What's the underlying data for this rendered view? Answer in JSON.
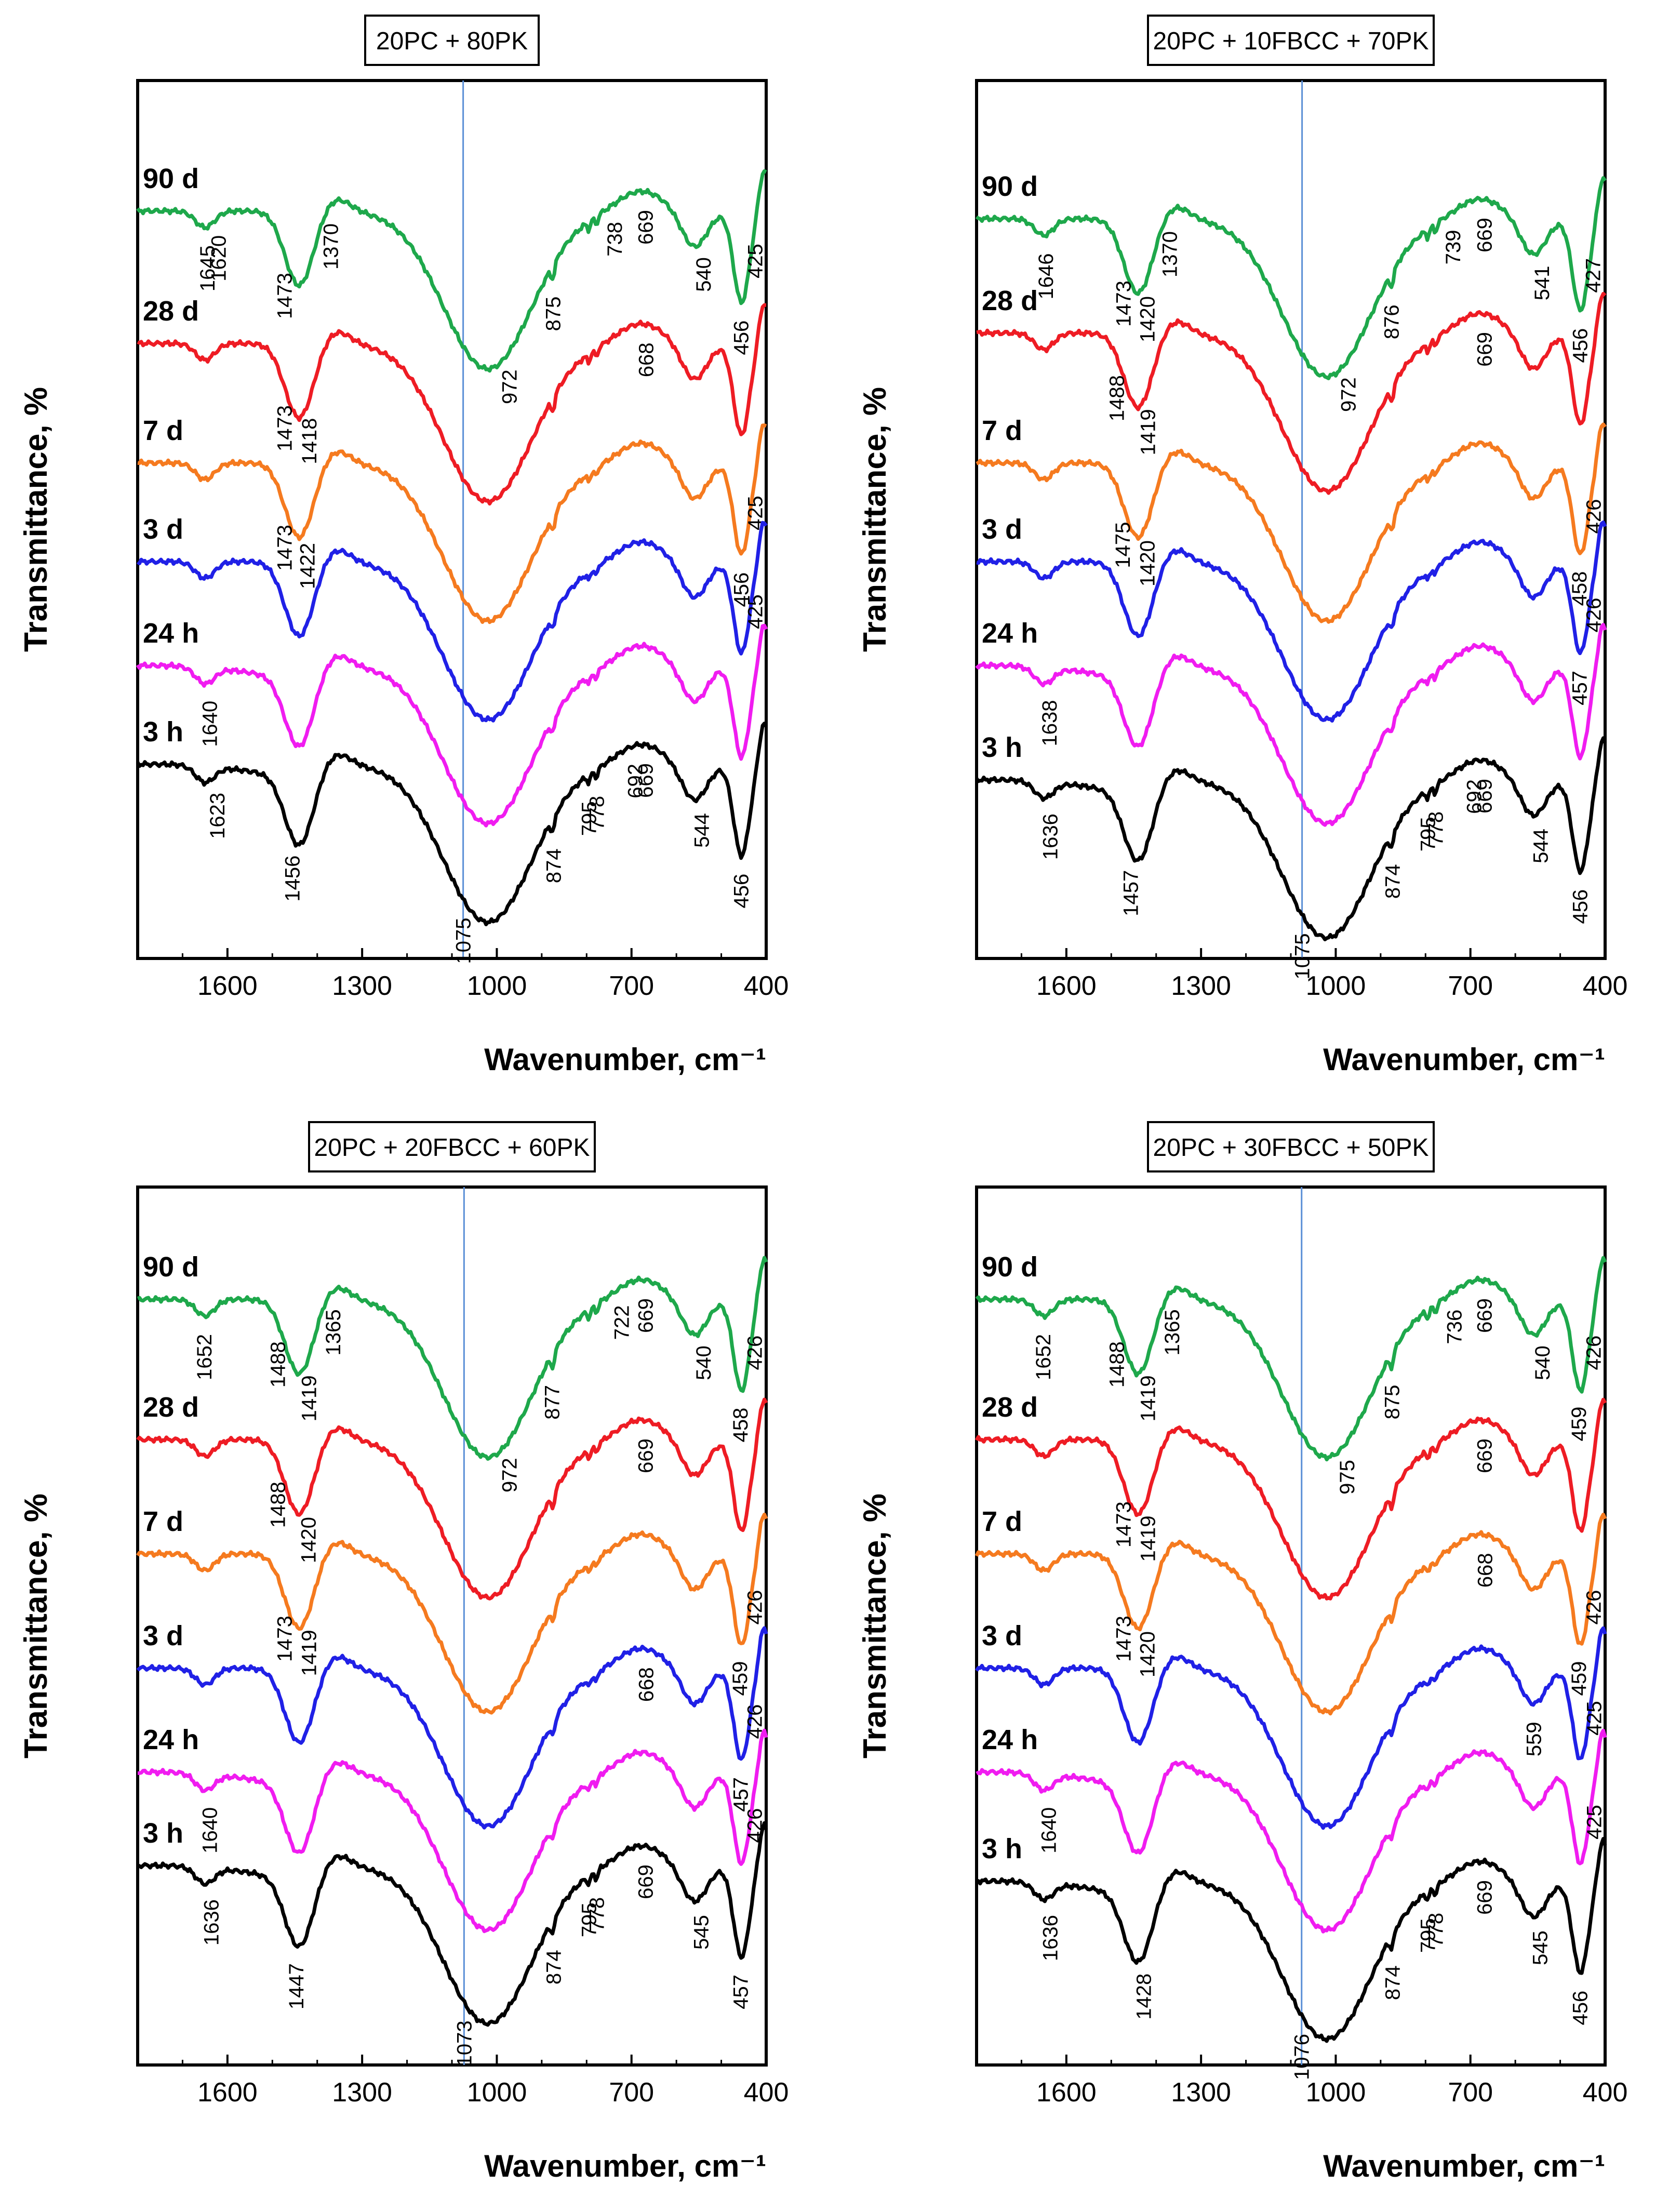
{
  "colors": {
    "90 d": "#1ea84b",
    "28 d": "#ee1c24",
    "7 d": "#f57a1f",
    "3 d": "#2020e6",
    "24 h": "#f01cf0",
    "3 h": "#000000",
    "axis": "#000000",
    "guide_line": "#5b8fd6"
  },
  "chart_data": [
    {
      "type": "line",
      "title": "20PC + 80PK",
      "xlabel": "Wavenumber, cm⁻¹",
      "ylabel": "Transmittance, %",
      "xlim": [
        1800,
        400
      ],
      "x_reversed": true,
      "xticks": [
        "1600",
        "1300",
        "1000",
        "700",
        "400"
      ],
      "y_ticks_shown": false,
      "guide_line_x": 1075,
      "series_order_top_to_bottom": [
        "90 d",
        "28 d",
        "7 d",
        "3 d",
        "24 h",
        "3 h"
      ],
      "series": [
        {
          "name": "90 d",
          "band_labels": [
            "1645",
            "1473",
            "1620",
            "1370",
            "972",
            "875",
            "738",
            "669",
            "540",
            "456",
            "425"
          ]
        },
        {
          "name": "28 d",
          "band_labels": [
            "1473",
            "1418",
            "668"
          ]
        },
        {
          "name": "7 d",
          "band_labels": [
            "1473",
            "1422",
            "456",
            "425"
          ]
        },
        {
          "name": "3 d",
          "band_labels": [
            "425"
          ]
        },
        {
          "name": "24 h",
          "band_labels": [
            "1640"
          ]
        },
        {
          "name": "3 h",
          "band_labels": [
            "1623",
            "1456",
            "1075",
            "874",
            "795",
            "778",
            "692",
            "669",
            "544",
            "456"
          ]
        }
      ]
    },
    {
      "type": "line",
      "title": "20PC + 10FBCC + 70PK",
      "xlabel": "Wavenumber, cm⁻¹",
      "ylabel": "Transmittance, %",
      "xlim": [
        1800,
        400
      ],
      "x_reversed": true,
      "xticks": [
        "1600",
        "1300",
        "1000",
        "700",
        "400"
      ],
      "y_ticks_shown": false,
      "guide_line_x": 1075,
      "series_order_top_to_bottom": [
        "90 d",
        "28 d",
        "7 d",
        "3 d",
        "24 h",
        "3 h"
      ],
      "series": [
        {
          "name": "90 d",
          "band_labels": [
            "1646",
            "1473",
            "1420",
            "1370",
            "972",
            "876",
            "739",
            "669",
            "541",
            "456",
            "427"
          ]
        },
        {
          "name": "28 d",
          "band_labels": [
            "1488",
            "1419",
            "669"
          ]
        },
        {
          "name": "7 d",
          "band_labels": [
            "1475",
            "1420",
            "458",
            "426"
          ]
        },
        {
          "name": "3 d",
          "band_labels": [
            "457",
            "426"
          ]
        },
        {
          "name": "24 h",
          "band_labels": [
            "1638"
          ]
        },
        {
          "name": "3 h",
          "band_labels": [
            "1636",
            "1457",
            "1075",
            "874",
            "795",
            "778",
            "692",
            "669",
            "544",
            "456"
          ]
        }
      ]
    },
    {
      "type": "line",
      "title": "20PC + 20FBCC + 60PK",
      "xlabel": "Wavenumber, cm⁻¹",
      "ylabel": "Transmittance, %",
      "xlim": [
        1800,
        400
      ],
      "x_reversed": true,
      "xticks": [
        "1600",
        "1300",
        "1000",
        "700",
        "400"
      ],
      "y_ticks_shown": false,
      "guide_line_x": 1073,
      "series_order_top_to_bottom": [
        "90 d",
        "28 d",
        "7 d",
        "3 d",
        "24 h",
        "3 h"
      ],
      "series": [
        {
          "name": "90 d",
          "band_labels": [
            "1652",
            "1488",
            "1419",
            "1365",
            "972",
            "877",
            "722",
            "669",
            "540",
            "458",
            "426"
          ]
        },
        {
          "name": "28 d",
          "band_labels": [
            "1488",
            "1420",
            "669"
          ]
        },
        {
          "name": "7 d",
          "band_labels": [
            "1473",
            "1419",
            "459",
            "426"
          ]
        },
        {
          "name": "3 d",
          "band_labels": [
            "668",
            "457",
            "426"
          ]
        },
        {
          "name": "24 h",
          "band_labels": [
            "1640",
            "426"
          ]
        },
        {
          "name": "3 h",
          "band_labels": [
            "1636",
            "1447",
            "1073",
            "874",
            "795",
            "778",
            "669",
            "545",
            "457"
          ]
        }
      ]
    },
    {
      "type": "line",
      "title": "20PC + 30FBCC + 50PK",
      "xlabel": "Wavenumber, cm⁻¹",
      "ylabel": "Transmittance, %",
      "xlim": [
        1800,
        400
      ],
      "x_reversed": true,
      "xticks": [
        "1600",
        "1300",
        "1000",
        "700",
        "400"
      ],
      "y_ticks_shown": false,
      "guide_line_x": 1076,
      "series_order_top_to_bottom": [
        "90 d",
        "28 d",
        "7 d",
        "3 d",
        "24 h",
        "3 h"
      ],
      "series": [
        {
          "name": "90 d",
          "band_labels": [
            "1652",
            "1488",
            "1419",
            "1365",
            "975",
            "875",
            "736",
            "669",
            "540",
            "459",
            "426"
          ]
        },
        {
          "name": "28 d",
          "band_labels": [
            "1473",
            "1419",
            "669"
          ]
        },
        {
          "name": "7 d",
          "band_labels": [
            "1473",
            "1420",
            "668",
            "459",
            "426"
          ]
        },
        {
          "name": "3 d",
          "band_labels": [
            "559",
            "425"
          ]
        },
        {
          "name": "24 h",
          "band_labels": [
            "1640",
            "425"
          ]
        },
        {
          "name": "3 h",
          "band_labels": [
            "1636",
            "1428",
            "1076",
            "874",
            "795",
            "778",
            "669",
            "545",
            "456"
          ]
        }
      ]
    }
  ]
}
